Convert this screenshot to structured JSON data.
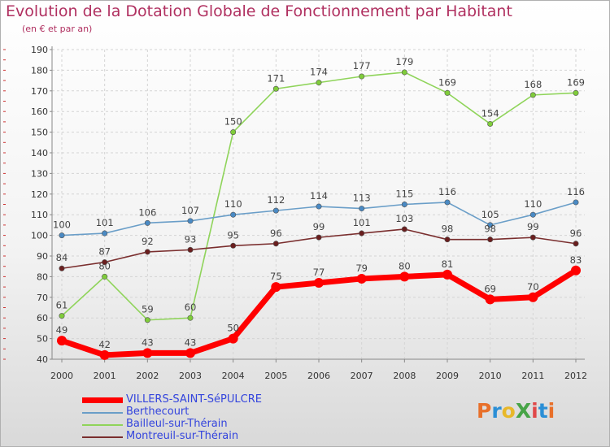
{
  "title": "Evolution de la Dotation Globale de Fonctionnement par Habitant",
  "subtitle": "(en € et par an)",
  "logo": {
    "text": "ProXiti",
    "colors": [
      "#e8702a",
      "#2b8fd6",
      "#e8b82a",
      "#47a447",
      "#e04848",
      "#2b8fd6",
      "#e8702a"
    ]
  },
  "chart_data": {
    "type": "line",
    "title": "Evolution de la Dotation Globale de Fonctionnement par Habitant",
    "subtitle": "(en € et par an)",
    "x": [
      "2000",
      "2001",
      "2002",
      "2003",
      "2004",
      "2005",
      "2006",
      "2007",
      "2008",
      "2009",
      "2010",
      "2011",
      "2012"
    ],
    "ylim": [
      40,
      190
    ],
    "yticks": [
      "40",
      "50",
      "60",
      "70",
      "80",
      "90",
      "100",
      "110",
      "120",
      "130",
      "140",
      "150",
      "160",
      "170",
      "180",
      "190"
    ],
    "grid": true,
    "legend_position": "bottom-left",
    "series": [
      {
        "name": "Bailleul-sur-Thérain",
        "color": "#8fd45a",
        "point_color": "#7fcc3a",
        "values": [
          61,
          80,
          59,
          60,
          150,
          171,
          174,
          177,
          179,
          169,
          154,
          168,
          169
        ]
      },
      {
        "name": "Berthecourt",
        "color": "#6a9ec8",
        "point_color": "#4a8ac4",
        "values": [
          100,
          101,
          106,
          107,
          110,
          112,
          114,
          113,
          115,
          116,
          105,
          110,
          116
        ]
      },
      {
        "name": "Montreuil-sur-Thérain",
        "color": "#7a2e2e",
        "point_color": "#6a1e1e",
        "values": [
          84,
          87,
          92,
          93,
          95,
          96,
          99,
          101,
          103,
          98,
          98,
          99,
          96
        ]
      },
      {
        "name": "VILLERS-SAINT-SéPULCRE",
        "color": "#ff0000",
        "point_color": "#ff0000",
        "values": [
          49,
          42,
          43,
          43,
          50,
          75,
          77,
          79,
          80,
          81,
          69,
          70,
          83
        ],
        "bold": true
      }
    ]
  },
  "legend": [
    {
      "label": "VILLERS-SAINT-SéPULCRE",
      "color": "#ff0000",
      "bold": true
    },
    {
      "label": "Berthecourt",
      "color": "#6a9ec8",
      "bold": false
    },
    {
      "label": "Bailleul-sur-Thérain",
      "color": "#8fd45a",
      "bold": false
    },
    {
      "label": "Montreuil-sur-Thérain",
      "color": "#7a2e2e",
      "bold": false
    }
  ]
}
